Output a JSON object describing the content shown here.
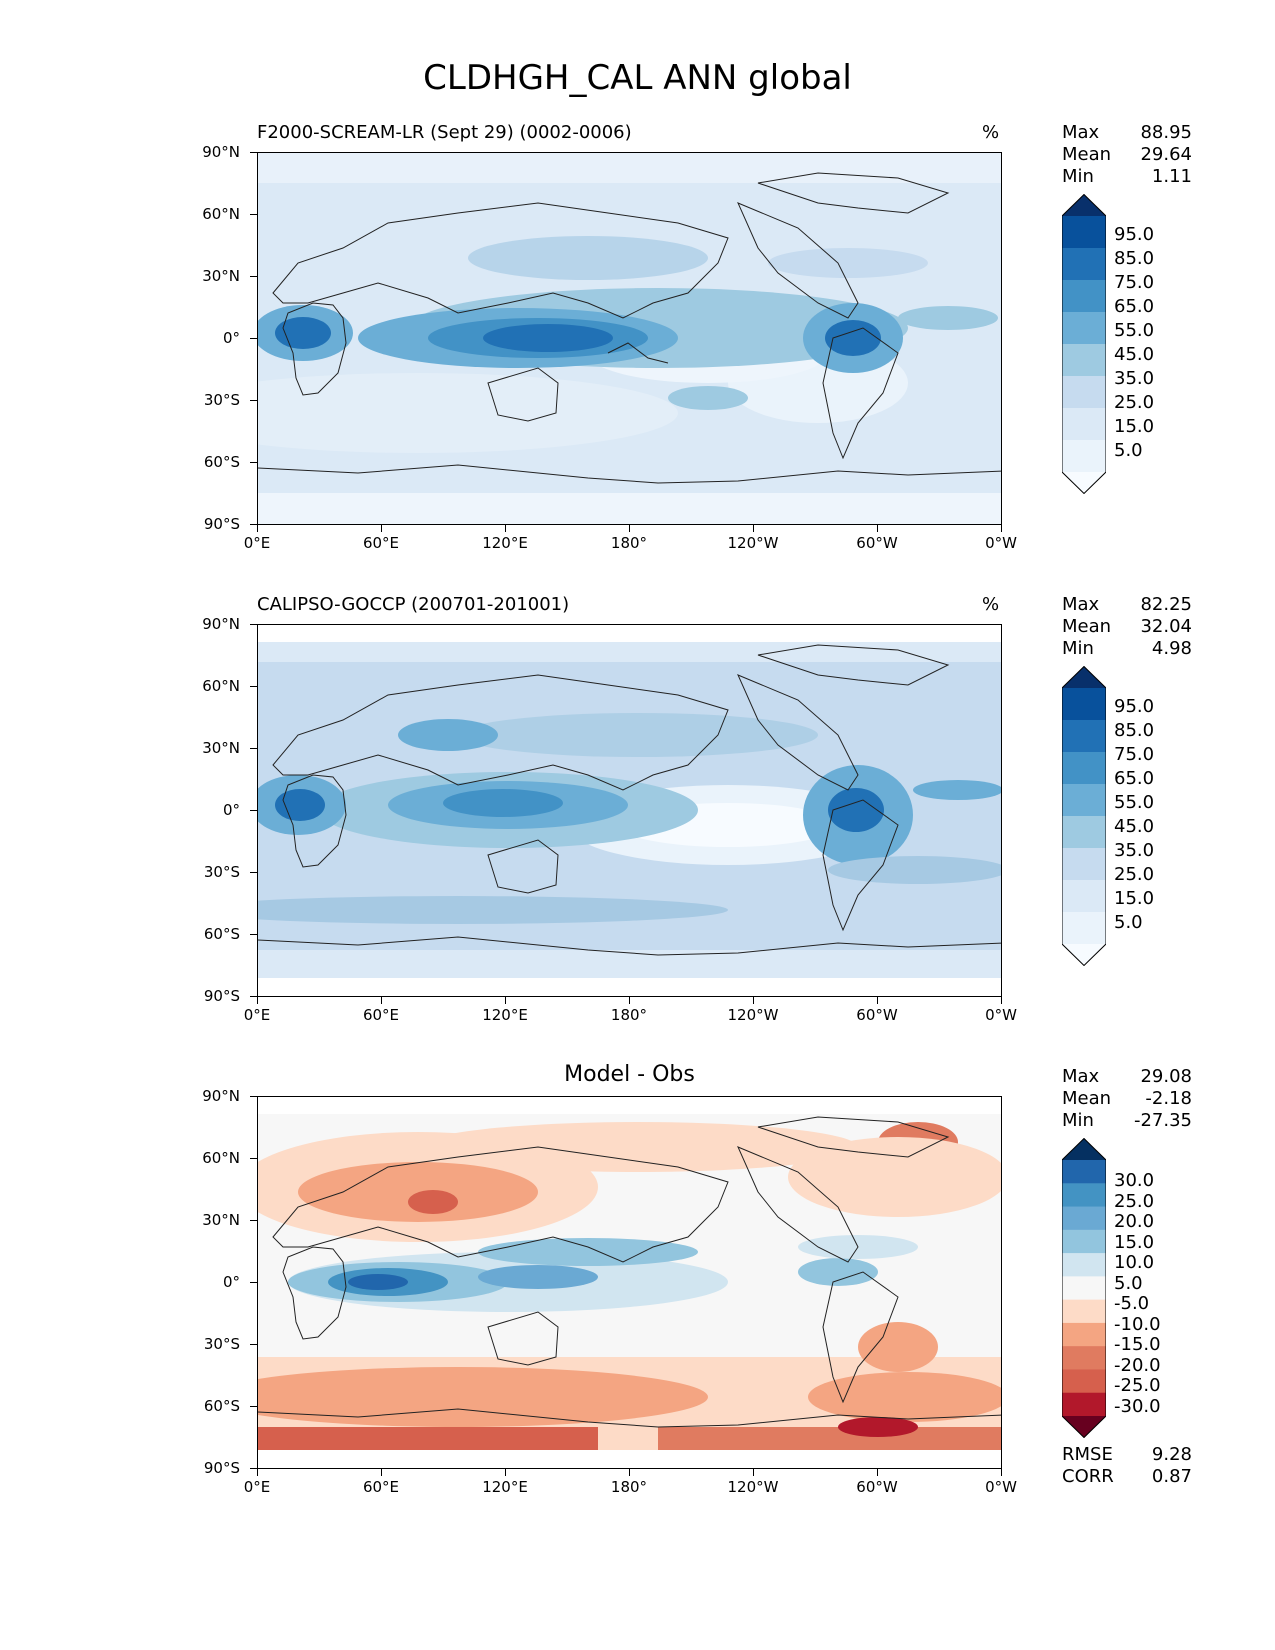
{
  "title": "CLDHGH_CAL ANN global",
  "lat_labels": [
    "90°N",
    "60°N",
    "30°N",
    "0°",
    "30°S",
    "60°S",
    "90°S"
  ],
  "lon_labels": [
    "0°E",
    "60°E",
    "120°E",
    "180°",
    "120°W",
    "60°W",
    "0°W"
  ],
  "panels": [
    {
      "title": "F2000-SCREAM-LR (Sept 29) (0002-0006)",
      "units": "%",
      "stats": [
        {
          "label": "Max",
          "value": "88.95"
        },
        {
          "label": "Mean",
          "value": "29.64"
        },
        {
          "label": "Min",
          "value": "1.11"
        }
      ],
      "colorbar": {
        "labels": [
          "95.0",
          "85.0",
          "75.0",
          "65.0",
          "55.0",
          "45.0",
          "35.0",
          "25.0",
          "15.0",
          "5.0"
        ],
        "colors": [
          "#08306b",
          "#08519c",
          "#2171b5",
          "#4292c6",
          "#6baed6",
          "#9ecae1",
          "#c6dbef",
          "#dbe9f6",
          "#eaf3fb",
          "#f7fbff"
        ]
      }
    },
    {
      "title": "CALIPSO-GOCCP (200701-201001)",
      "units": "%",
      "stats": [
        {
          "label": "Max",
          "value": "82.25"
        },
        {
          "label": "Mean",
          "value": "32.04"
        },
        {
          "label": "Min",
          "value": "4.98"
        }
      ],
      "colorbar": {
        "labels": [
          "95.0",
          "85.0",
          "75.0",
          "65.0",
          "55.0",
          "45.0",
          "35.0",
          "25.0",
          "15.0",
          "5.0"
        ],
        "colors": [
          "#08306b",
          "#08519c",
          "#2171b5",
          "#4292c6",
          "#6baed6",
          "#9ecae1",
          "#c6dbef",
          "#dbe9f6",
          "#eaf3fb",
          "#f7fbff"
        ]
      }
    },
    {
      "title": "Model - Obs",
      "units": "",
      "stats": [
        {
          "label": "Max",
          "value": "29.08"
        },
        {
          "label": "Mean",
          "value": "-2.18"
        },
        {
          "label": "Min",
          "value": "-27.35"
        }
      ],
      "colorbar": {
        "labels": [
          "30.0",
          "25.0",
          "20.0",
          "15.0",
          "10.0",
          "5.0",
          "-5.0",
          "-10.0",
          "-15.0",
          "-20.0",
          "-25.0",
          "-30.0"
        ],
        "colors": [
          "#053061",
          "#2166ac",
          "#4393c3",
          "#6aa9d3",
          "#92c5de",
          "#d1e5f0",
          "#f7f7f7",
          "#fddbc7",
          "#f4a582",
          "#e07b60",
          "#d6604d",
          "#b2182b",
          "#67001f"
        ]
      },
      "extra": [
        {
          "label": "RMSE",
          "value": "9.28"
        },
        {
          "label": "CORR",
          "value": "0.87"
        }
      ]
    }
  ]
}
